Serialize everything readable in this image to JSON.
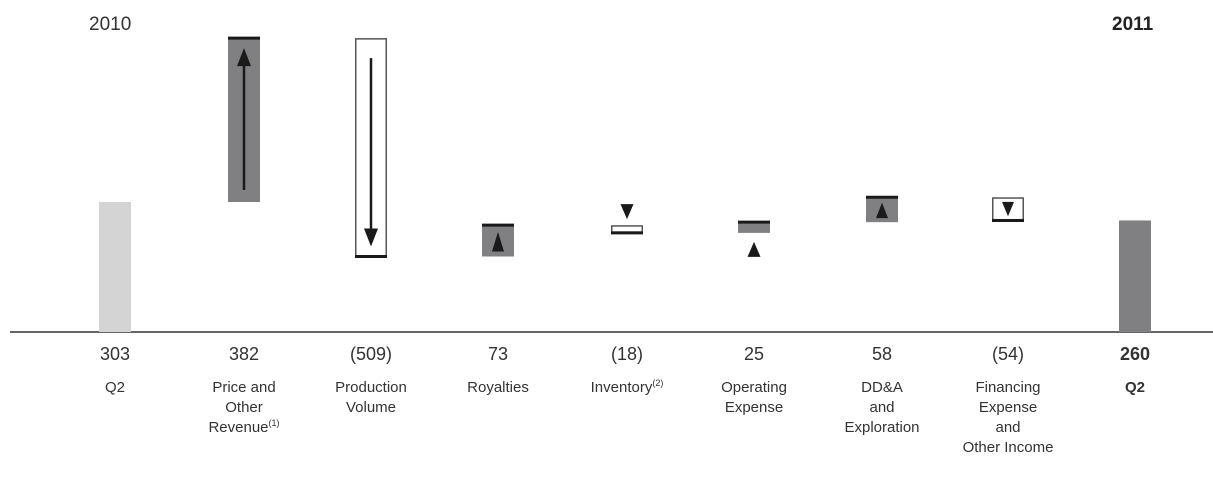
{
  "year_start": "2010",
  "year_end": "2011",
  "chart_data": {
    "type": "bar",
    "subtype": "waterfall",
    "categories": [
      [
        "Q2"
      ],
      [
        "Price and",
        "Other",
        "Revenue(1)"
      ],
      [
        "Production",
        "Volume"
      ],
      [
        "Royalties"
      ],
      [
        "Inventory(2)"
      ],
      [
        "Operating",
        "Expense"
      ],
      [
        "DD&A",
        "and",
        "Exploration"
      ],
      [
        "Financing",
        "Expense",
        "and",
        "Other Income"
      ],
      [
        "Q2"
      ]
    ],
    "values": [
      303,
      382,
      -509,
      73,
      -18,
      25,
      58,
      -54,
      260
    ],
    "value_labels": [
      "303",
      "382",
      "(509)",
      "73",
      "(18)",
      "25",
      "58",
      "(54)",
      "260"
    ],
    "bar_kinds": [
      "total",
      "delta",
      "delta",
      "delta",
      "delta",
      "delta",
      "delta",
      "delta",
      "total"
    ],
    "bold_last": true,
    "colors": {
      "start_total": "#d4d4d5",
      "end_total": "#808083",
      "increase_fill": "#808083",
      "decrease_fill": "#ffffff",
      "outline": "#555555",
      "arrow": "#1a1a1a",
      "axis": "#333333"
    },
    "ylim": [
      0,
      700
    ],
    "grid": false,
    "legend": "none"
  }
}
